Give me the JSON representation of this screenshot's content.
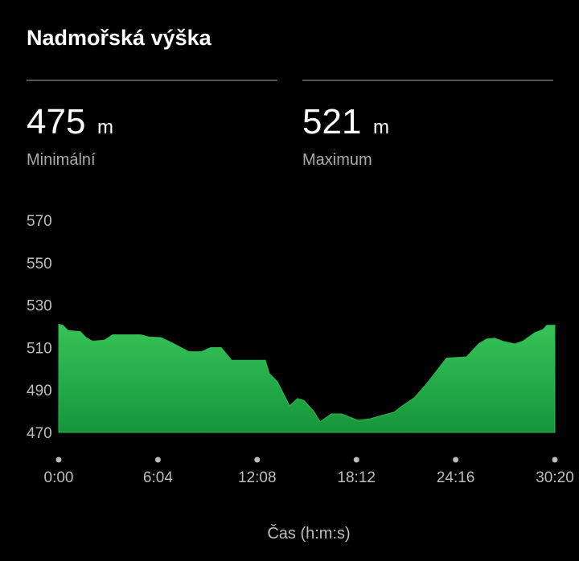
{
  "header": {
    "title": "Nadmořská výška"
  },
  "stats": [
    {
      "value": 475,
      "unit": "m",
      "label": "Minimální"
    },
    {
      "value": 521,
      "unit": "m",
      "label": "Maximum"
    }
  ],
  "chart_data": {
    "type": "area",
    "x_label": "Čas (h:m:s)",
    "x": [
      0,
      15,
      35,
      80,
      100,
      124,
      168,
      198,
      227,
      301,
      330,
      375,
      419,
      478,
      522,
      558,
      596,
      634,
      758,
      773,
      802,
      847,
      876,
      900,
      935,
      959,
      1000,
      1038,
      1097,
      1142,
      1186,
      1230,
      1260,
      1304,
      1348,
      1378,
      1422,
      1496,
      1540,
      1569,
      1599,
      1628,
      1673,
      1702,
      1746,
      1776,
      1791,
      1820
    ],
    "series": [
      {
        "color": "#2db84f",
        "values": [
          521,
          520.5,
          518,
          517.5,
          514.7,
          513,
          513.5,
          516,
          516,
          516,
          515,
          514.7,
          512,
          508,
          508,
          510,
          510,
          504,
          504,
          497.7,
          494,
          482.5,
          486,
          485,
          480,
          475,
          478.7,
          478.7,
          475.7,
          476.4,
          478,
          479.5,
          482.5,
          486.3,
          492.7,
          497.7,
          505,
          505.6,
          511.7,
          514,
          514.4,
          513,
          511.7,
          513,
          517,
          518.5,
          520.5,
          520.5
        ]
      }
    ],
    "xlim": [
      0,
      1820
    ],
    "xticks": [
      {
        "value": 0,
        "label": "0:00"
      },
      {
        "value": 364,
        "label": "6:04"
      },
      {
        "value": 728,
        "label": "12:08"
      },
      {
        "value": 1092,
        "label": "18:12"
      },
      {
        "value": 1456,
        "label": "24:16"
      },
      {
        "value": 1820,
        "label": "30:20"
      }
    ],
    "ylim": [
      470,
      570
    ],
    "yticks": [
      470,
      490,
      510,
      530,
      550,
      570
    ],
    "grid": false
  }
}
